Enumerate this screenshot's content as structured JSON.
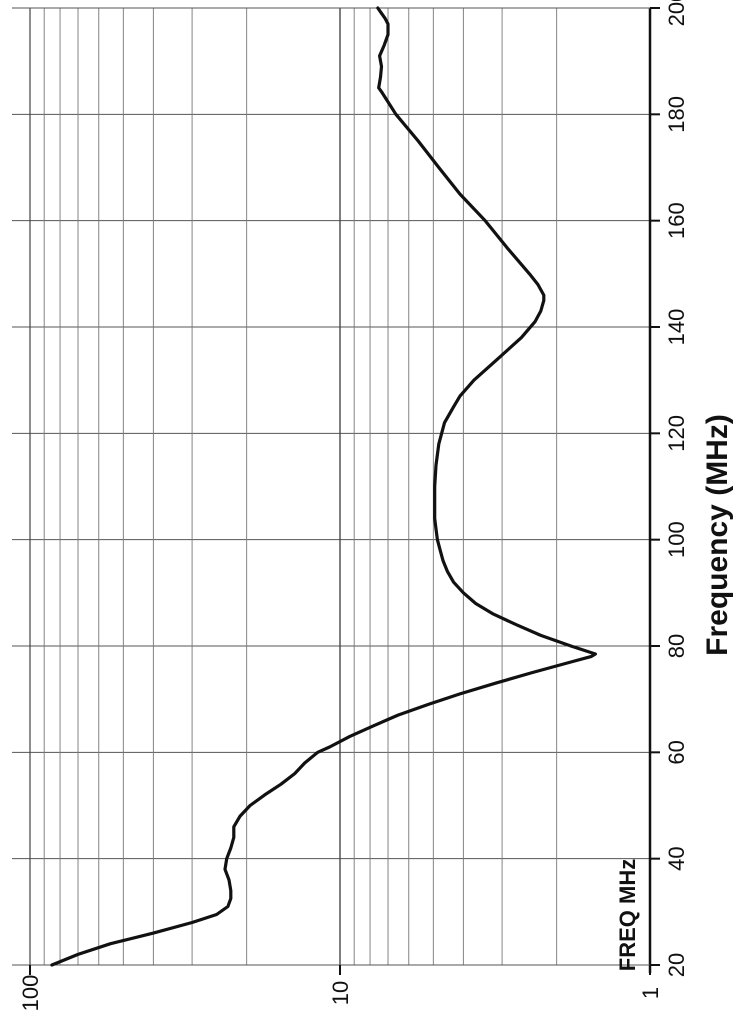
{
  "chart_data": {
    "type": "line",
    "orientation": "rotated 90° counter-clockwise (frequency runs bottom-to-top on the right, log value axis runs right-to-left along the bottom)",
    "xlabel": "Frequency (MHz)",
    "ylabel": "",
    "corner_label": "FREQ MHz",
    "x_scale": "linear",
    "y_scale": "log",
    "xlim": [
      20,
      200
    ],
    "ylim": [
      1,
      100
    ],
    "x_ticks": [
      "20",
      "40",
      "60",
      "80",
      "100",
      "120",
      "140",
      "160",
      "180",
      "200"
    ],
    "y_ticks": [
      "1",
      "10",
      "100"
    ],
    "grid": true,
    "series": [
      {
        "color": "#111111",
        "x": [
          20,
          22,
          24,
          26,
          28,
          29.5,
          31,
          32.5,
          34,
          36,
          38,
          40,
          42,
          44,
          46,
          48,
          50,
          52,
          54,
          56,
          58,
          60,
          61,
          63,
          65,
          67,
          69,
          71,
          73,
          75,
          77,
          78,
          78.5,
          80,
          82,
          84,
          86,
          88,
          90,
          92,
          94,
          96,
          98,
          100,
          102,
          104,
          106,
          110,
          114,
          118,
          122,
          125,
          126,
          127,
          130,
          134,
          138,
          141,
          143,
          145,
          146,
          148,
          150,
          155,
          160,
          165,
          170,
          175,
          180,
          184,
          185,
          187,
          189,
          191,
          193,
          195,
          197,
          198,
          199,
          200
        ],
        "y": [
          85,
          70,
          55,
          40,
          30,
          25,
          23,
          22.5,
          22.5,
          22.8,
          23.5,
          23.2,
          22.5,
          22,
          22,
          21,
          19.5,
          17.5,
          15.5,
          14,
          13,
          11.8,
          10.8,
          9.3,
          7.8,
          6.5,
          5.2,
          4.1,
          3.15,
          2.4,
          1.8,
          1.55,
          1.5,
          1.8,
          2.25,
          2.7,
          3.2,
          3.65,
          4.0,
          4.3,
          4.5,
          4.65,
          4.75,
          4.85,
          4.9,
          4.95,
          4.95,
          4.95,
          4.9,
          4.8,
          4.6,
          4.3,
          4.2,
          4.1,
          3.7,
          3.1,
          2.6,
          2.35,
          2.25,
          2.2,
          2.2,
          2.3,
          2.45,
          2.9,
          3.4,
          4.1,
          4.8,
          5.6,
          6.6,
          7.3,
          7.5,
          7.4,
          7.35,
          7.45,
          7.2,
          7.0,
          7.0,
          7.15,
          7.35,
          7.55
        ]
      }
    ]
  }
}
